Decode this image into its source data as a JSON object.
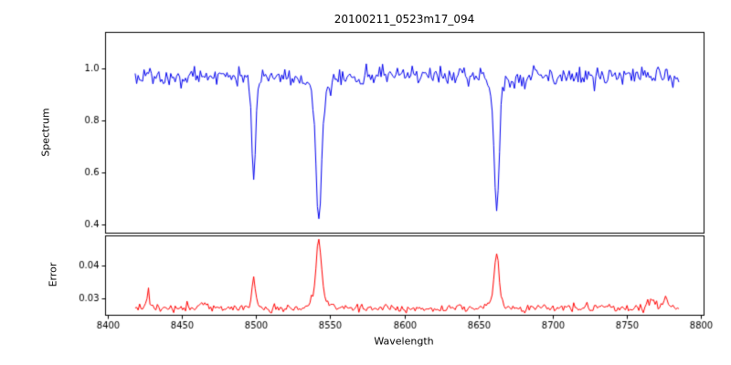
{
  "title": "20100211_0523m17_094",
  "xlabel": "Wavelength",
  "x_axis": {
    "lim": [
      8398,
      8802
    ],
    "ticks": [
      {
        "v": 8400,
        "label": "8400"
      },
      {
        "v": 8450,
        "label": "8450"
      },
      {
        "v": 8500,
        "label": "8500"
      },
      {
        "v": 8550,
        "label": "8550"
      },
      {
        "v": 8600,
        "label": "8600"
      },
      {
        "v": 8650,
        "label": "8650"
      },
      {
        "v": 8700,
        "label": "8700"
      },
      {
        "v": 8750,
        "label": "8750"
      },
      {
        "v": 8800,
        "label": "8800"
      }
    ]
  },
  "chart_data": [
    {
      "id": "spectrum",
      "type": "line",
      "ylabel": "Spectrum",
      "color": "#0000ee",
      "ylim": [
        0.37,
        1.14
      ],
      "yticks": [
        {
          "v": 0.4,
          "label": "0.4"
        },
        {
          "v": 0.6,
          "label": "0.6"
        },
        {
          "v": 0.8,
          "label": "0.8"
        },
        {
          "v": 1.0,
          "label": "1.0"
        }
      ],
      "x_start": 8418,
      "x_end": 8785,
      "x_step": 1,
      "baseline": 0.972,
      "noise_sigma": 0.019,
      "seed": 94,
      "features": [
        {
          "center": 8498,
          "amp": -0.385,
          "sigma": 1.3
        },
        {
          "center": 8498,
          "amp": -0.02,
          "sigma": 4.0
        },
        {
          "center": 8542,
          "amp": -0.48,
          "sigma": 1.9
        },
        {
          "center": 8542,
          "amp": -0.085,
          "sigma": 5.5
        },
        {
          "center": 8662,
          "amp": -0.44,
          "sigma": 1.6
        },
        {
          "center": 8662,
          "amp": -0.06,
          "sigma": 5.0
        }
      ],
      "notable_points": [
        {
          "x": 8498,
          "y": 0.58,
          "label": "absorption line"
        },
        {
          "x": 8542,
          "y": 0.4,
          "label": "absorption line"
        },
        {
          "x": 8662,
          "y": 0.47,
          "label": "absorption line"
        }
      ]
    },
    {
      "id": "error",
      "type": "line",
      "ylabel": "Error",
      "color": "#ff0000",
      "ylim": [
        0.025,
        0.049
      ],
      "yticks": [
        {
          "v": 0.03,
          "label": "0.03"
        },
        {
          "v": 0.04,
          "label": "0.04"
        }
      ],
      "x_start": 8418,
      "x_end": 8785,
      "x_step": 1,
      "baseline": 0.0272,
      "noise_sigma": 0.0006,
      "seed": 523,
      "features": [
        {
          "center": 8427,
          "amp": 0.0042,
          "sigma": 1.2
        },
        {
          "center": 8464,
          "amp": 0.0022,
          "sigma": 1.5
        },
        {
          "center": 8498,
          "amp": 0.008,
          "sigma": 1.3
        },
        {
          "center": 8542,
          "amp": 0.016,
          "sigma": 1.6
        },
        {
          "center": 8542,
          "amp": 0.0045,
          "sigma": 4.5
        },
        {
          "center": 8662,
          "amp": 0.014,
          "sigma": 1.5
        },
        {
          "center": 8662,
          "amp": 0.0035,
          "sigma": 4.0
        },
        {
          "center": 8767,
          "amp": 0.0028,
          "sigma": 2.0
        },
        {
          "center": 8776,
          "amp": 0.003,
          "sigma": 1.5
        }
      ],
      "notable_points": [
        {
          "x": 8498,
          "y": 0.035,
          "label": "error peak"
        },
        {
          "x": 8542,
          "y": 0.047,
          "label": "error peak"
        },
        {
          "x": 8662,
          "y": 0.044,
          "label": "error peak"
        }
      ]
    }
  ],
  "colors": {
    "axis": "#000000",
    "background": "#ffffff"
  }
}
